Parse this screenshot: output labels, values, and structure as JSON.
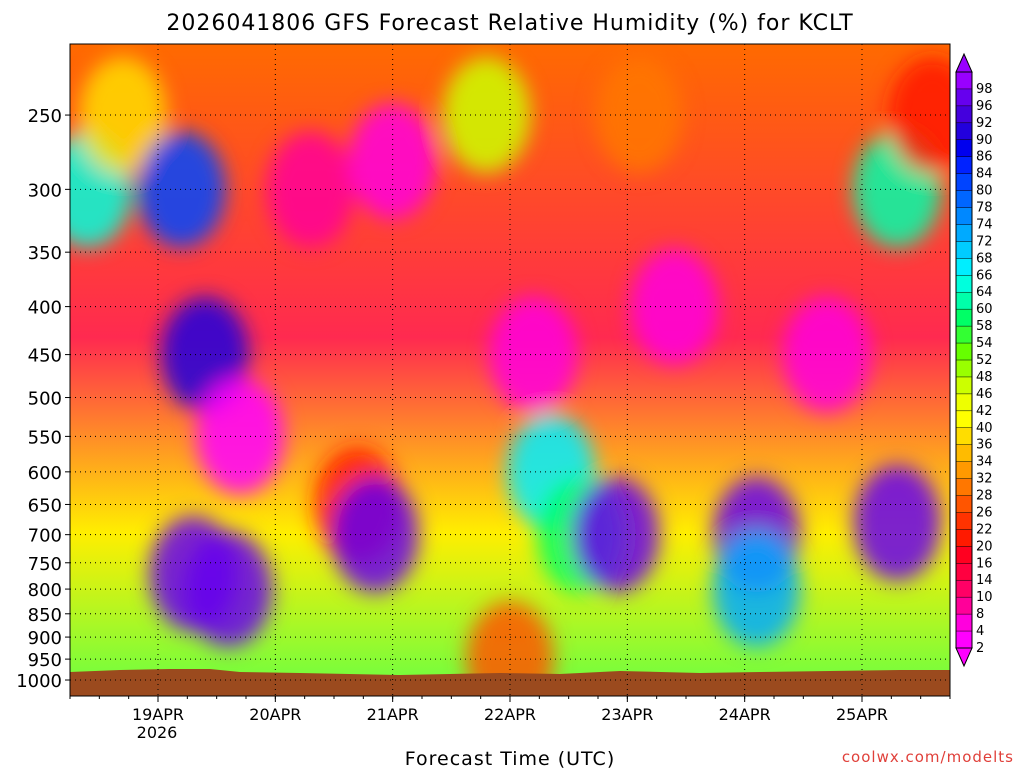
{
  "chart_data": {
    "type": "heatmap",
    "title": "2026041806 GFS Forecast Relative Humidity (%) for KCLT",
    "xlabel": "Forecast Time (UTC)",
    "credit": "coolwx.com/modelts",
    "x_ticks": [
      "19APR",
      "20APR",
      "21APR",
      "22APR",
      "23APR",
      "24APR",
      "25APR"
    ],
    "x_year": "2026",
    "x_range_days": [
      18.25,
      25.75
    ],
    "y_ticks": [
      250,
      300,
      350,
      400,
      450,
      500,
      550,
      600,
      650,
      700,
      750,
      800,
      850,
      900,
      950,
      1000
    ],
    "ylim": [
      200,
      1000
    ],
    "y_scale": "log-pressure (inverted)",
    "grid": true,
    "colorbar": {
      "levels": [
        2,
        4,
        8,
        10,
        14,
        16,
        20,
        22,
        26,
        28,
        32,
        34,
        36,
        40,
        42,
        46,
        48,
        52,
        54,
        58,
        60,
        64,
        66,
        68,
        72,
        74,
        78,
        80,
        84,
        86,
        90,
        92,
        96,
        98
      ],
      "colors": [
        "#ff00ff",
        "#ff00dd",
        "#ff0099",
        "#ff0066",
        "#ff0040",
        "#ff0020",
        "#ff1a00",
        "#ff3300",
        "#ff5500",
        "#ff7700",
        "#ff9900",
        "#ffbb00",
        "#ffdd00",
        "#ffff00",
        "#eeff00",
        "#ccff00",
        "#99ff00",
        "#66ff00",
        "#33ff33",
        "#00ff66",
        "#00ffaa",
        "#00ffdd",
        "#00eeff",
        "#00ccff",
        "#00aaff",
        "#0088ff",
        "#0066ff",
        "#0044ff",
        "#0022ff",
        "#0000ee",
        "#2200dd",
        "#4400dd",
        "#6600ee",
        "#9900ff"
      ]
    },
    "field": [
      {
        "t": 18.4,
        "p": 300,
        "rh": 64
      },
      {
        "t": 18.7,
        "p": 250,
        "rh": 38
      },
      {
        "t": 19.2,
        "p": 300,
        "rh": 82
      },
      {
        "t": 19.4,
        "p": 450,
        "rh": 90
      },
      {
        "t": 19.3,
        "p": 770,
        "rh": 96
      },
      {
        "t": 19.6,
        "p": 800,
        "rh": 96
      },
      {
        "t": 19.7,
        "p": 550,
        "rh": 2
      },
      {
        "t": 20.3,
        "p": 300,
        "rh": 8
      },
      {
        "t": 20.7,
        "p": 650,
        "rh": 20
      },
      {
        "t": 21.0,
        "p": 280,
        "rh": 6
      },
      {
        "t": 20.85,
        "p": 700,
        "rh": 96
      },
      {
        "t": 21.8,
        "p": 250,
        "rh": 46
      },
      {
        "t": 22.2,
        "p": 450,
        "rh": 6
      },
      {
        "t": 22.35,
        "p": 600,
        "rh": 66
      },
      {
        "t": 22.6,
        "p": 700,
        "rh": 58
      },
      {
        "t": 22.9,
        "p": 700,
        "rh": 96
      },
      {
        "t": 23.1,
        "p": 250,
        "rh": 28
      },
      {
        "t": 23.4,
        "p": 400,
        "rh": 4
      },
      {
        "t": 24.1,
        "p": 700,
        "rh": 96
      },
      {
        "t": 24.1,
        "p": 800,
        "rh": 72
      },
      {
        "t": 24.7,
        "p": 450,
        "rh": 6
      },
      {
        "t": 25.3,
        "p": 680,
        "rh": 96
      },
      {
        "t": 25.3,
        "p": 300,
        "rh": 60
      },
      {
        "t": 25.6,
        "p": 250,
        "rh": 20
      },
      {
        "t": 22.0,
        "p": 950,
        "rh": 26
      }
    ]
  }
}
